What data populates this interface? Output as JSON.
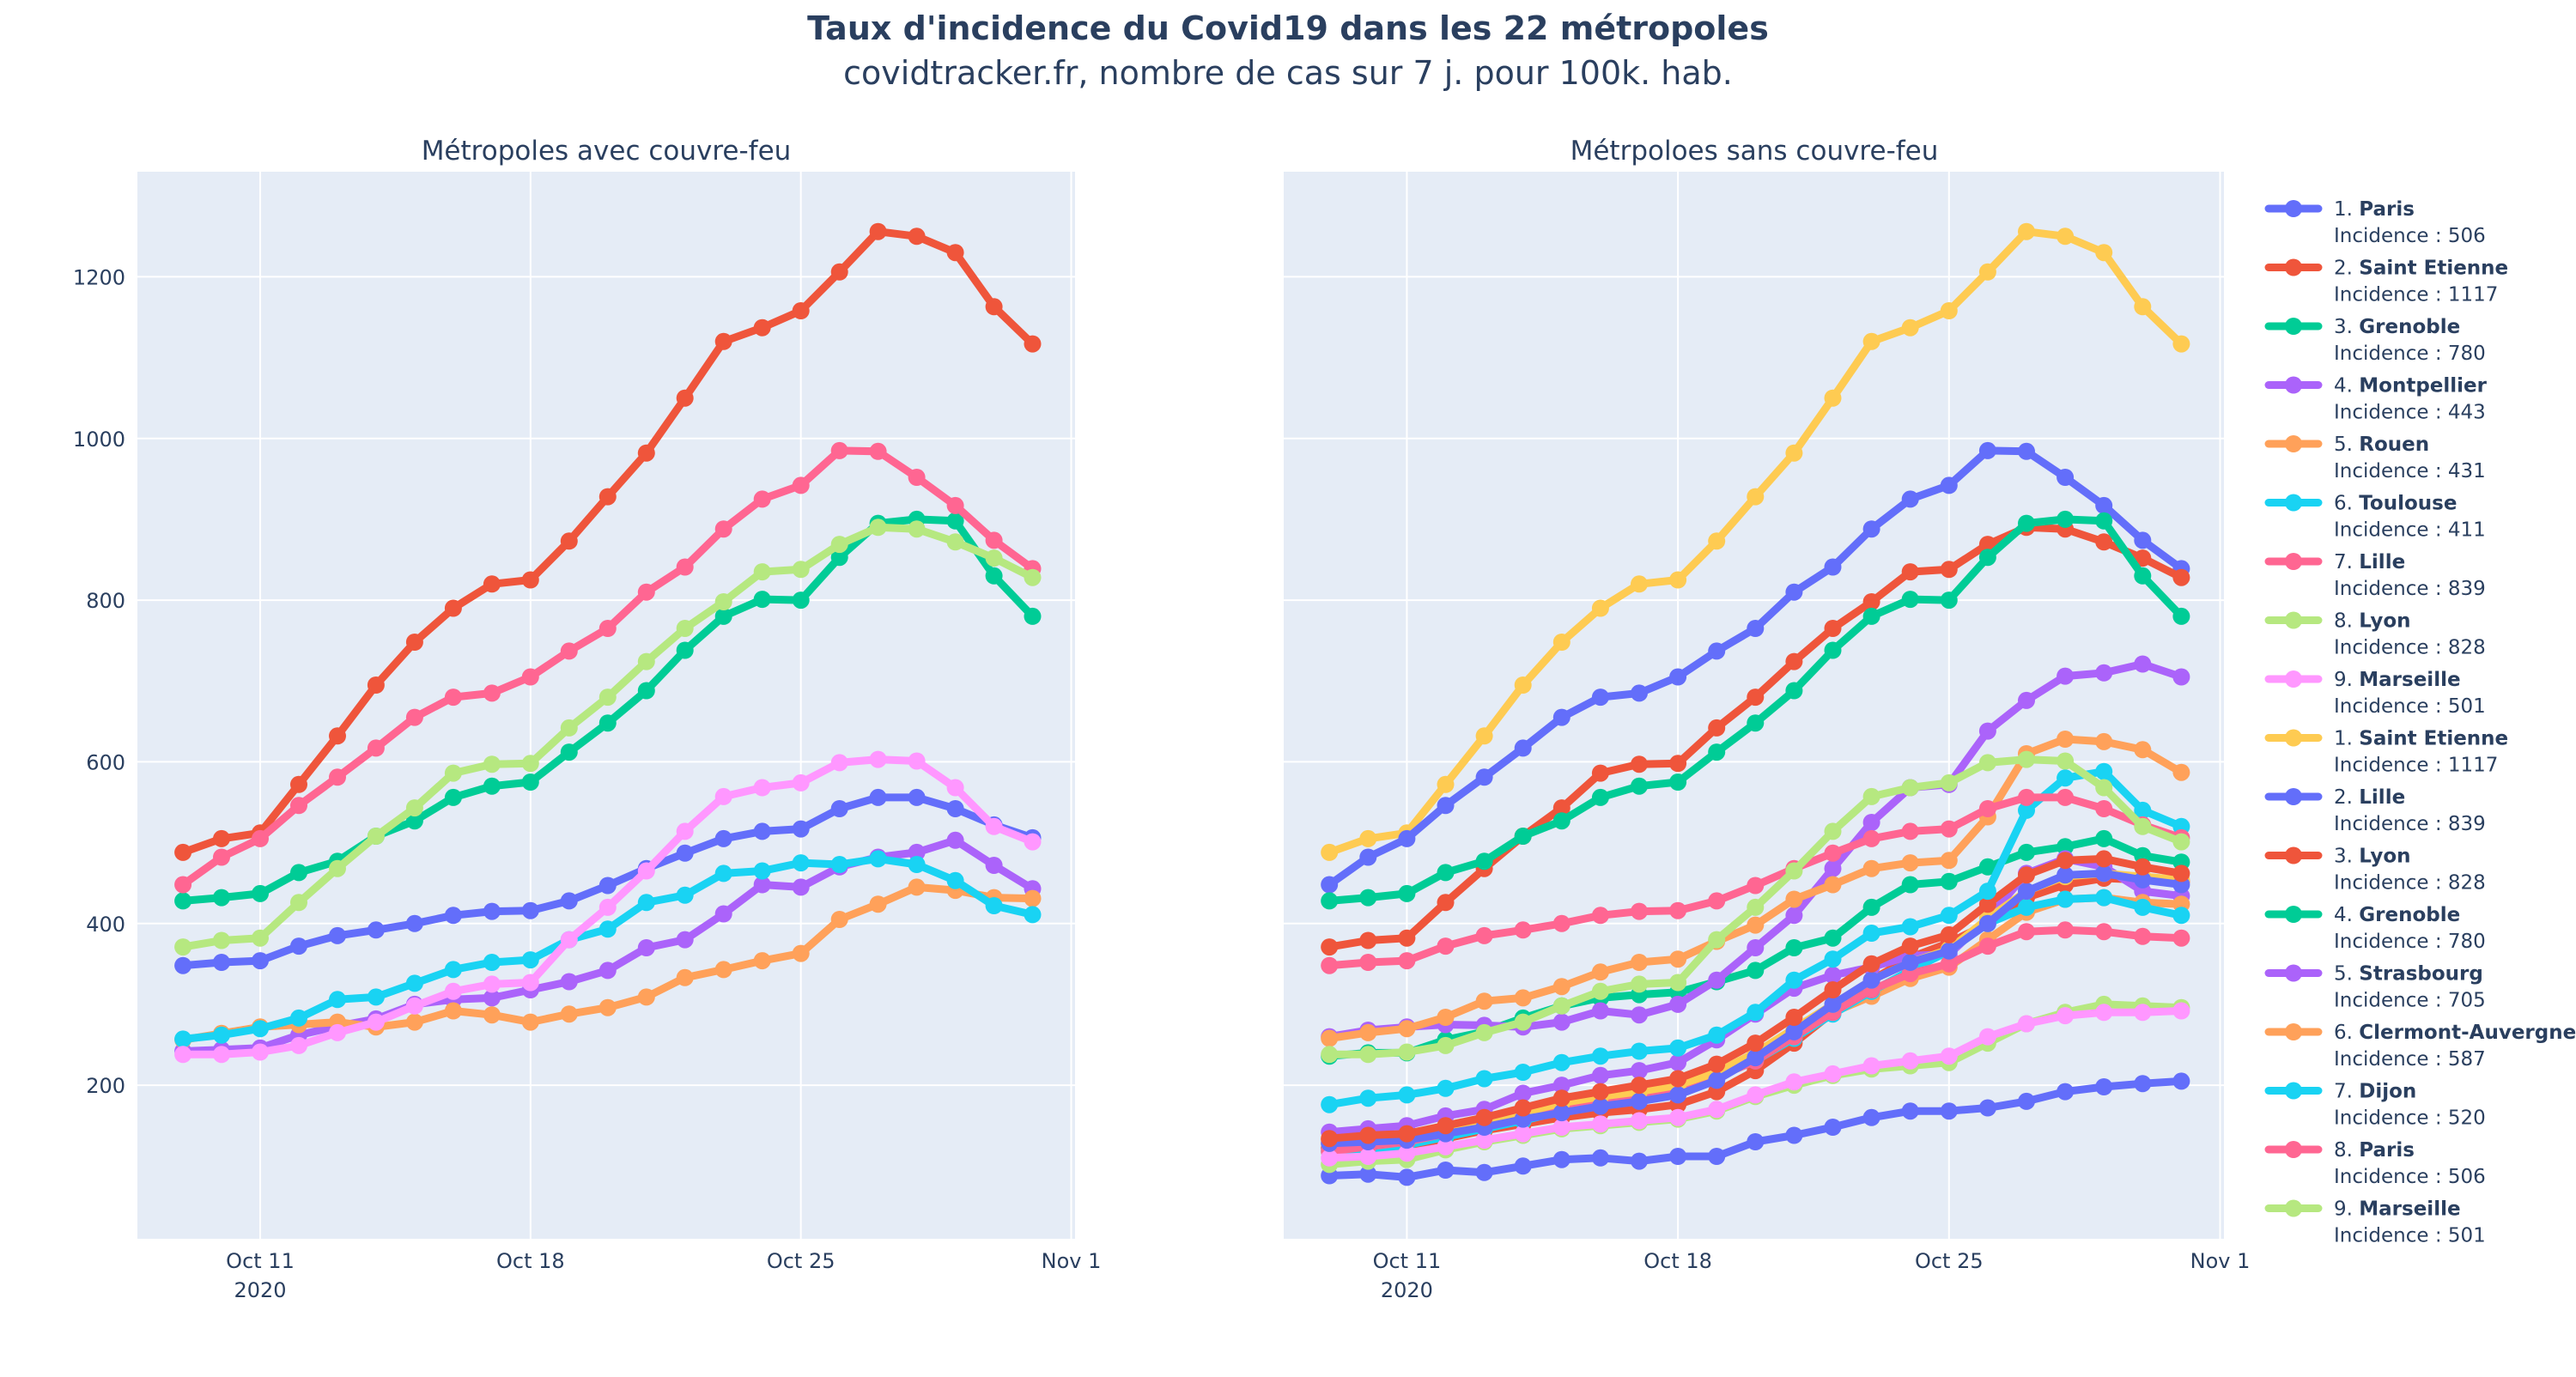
{
  "title": "Taux d'incidence du Covid19 dans les 22 métropoles",
  "subtitle": "covidtracker.fr, nombre de cas sur 7 j. pour 100k. hab.",
  "legend_prefix": "Incidence : ",
  "colors": [
    "#636efa",
    "#ef553b",
    "#00cc96",
    "#ab63fa",
    "#ffa15a",
    "#19d3f3",
    "#ff6692",
    "#b6e880",
    "#ff97ff",
    "#fecb52"
  ],
  "chart_data": [
    {
      "type": "line",
      "title": "Métropoles avec couvre-feu",
      "x": [
        "2020-10-09",
        "2020-10-10",
        "2020-10-11",
        "2020-10-12",
        "2020-10-13",
        "2020-10-14",
        "2020-10-15",
        "2020-10-16",
        "2020-10-17",
        "2020-10-18",
        "2020-10-19",
        "2020-10-20",
        "2020-10-21",
        "2020-10-22",
        "2020-10-23",
        "2020-10-24",
        "2020-10-25",
        "2020-10-26",
        "2020-10-27",
        "2020-10-28",
        "2020-10-29",
        "2020-10-30",
        "2020-10-31"
      ],
      "x_ticks": [
        "Oct 11",
        "Oct 18",
        "Oct 25",
        "Nov 1"
      ],
      "x_tick_year": "2020",
      "y_ticks": [
        200,
        400,
        600,
        800,
        1000,
        1200
      ],
      "ylim": [
        10,
        1330
      ],
      "grid": true,
      "series": [
        {
          "rank": "1.",
          "name": "Paris",
          "incidence": 506,
          "color": "#636efa",
          "values": [
            348,
            352,
            354,
            372,
            385,
            392,
            400,
            410,
            415,
            416,
            428,
            447,
            468,
            487,
            505,
            514,
            517,
            542,
            556,
            556,
            542,
            522,
            506
          ]
        },
        {
          "rank": "2.",
          "name": "Saint Etienne",
          "incidence": 1117,
          "color": "#ef553b",
          "values": [
            488,
            505,
            512,
            572,
            632,
            695,
            748,
            790,
            820,
            825,
            873,
            928,
            982,
            1050,
            1120,
            1137,
            1158,
            1206,
            1256,
            1250,
            1230,
            1163,
            1117
          ]
        },
        {
          "rank": "3.",
          "name": "Grenoble",
          "incidence": 780,
          "color": "#00cc96",
          "values": [
            428,
            432,
            437,
            463,
            477,
            508,
            527,
            556,
            570,
            575,
            612,
            648,
            688,
            738,
            780,
            801,
            800,
            853,
            895,
            900,
            898,
            830,
            780
          ]
        },
        {
          "rank": "4.",
          "name": "Montpellier",
          "incidence": 443,
          "color": "#ab63fa",
          "values": [
            242,
            244,
            246,
            262,
            273,
            282,
            300,
            306,
            308,
            318,
            328,
            342,
            370,
            380,
            412,
            448,
            445,
            470,
            482,
            488,
            503,
            472,
            443
          ]
        },
        {
          "rank": "5.",
          "name": "Rouen",
          "incidence": 431,
          "color": "#ffa15a",
          "values": [
            256,
            264,
            272,
            275,
            278,
            272,
            278,
            292,
            287,
            278,
            288,
            296,
            309,
            333,
            343,
            354,
            363,
            405,
            424,
            445,
            441,
            432,
            431
          ]
        },
        {
          "rank": "6.",
          "name": "Toulouse",
          "incidence": 411,
          "color": "#19d3f3",
          "values": [
            257,
            262,
            270,
            283,
            306,
            309,
            326,
            343,
            352,
            355,
            380,
            393,
            426,
            435,
            462,
            465,
            475,
            473,
            480,
            473,
            453,
            422,
            411
          ]
        },
        {
          "rank": "7.",
          "name": "Lille",
          "incidence": 839,
          "color": "#ff6692",
          "values": [
            448,
            482,
            505,
            546,
            581,
            617,
            655,
            680,
            685,
            705,
            737,
            765,
            810,
            841,
            888,
            925,
            942,
            985,
            984,
            952,
            917,
            874,
            839
          ]
        },
        {
          "rank": "8.",
          "name": "Lyon",
          "incidence": 828,
          "color": "#b6e880",
          "values": [
            371,
            379,
            382,
            426,
            468,
            508,
            543,
            586,
            597,
            598,
            642,
            680,
            724,
            765,
            798,
            835,
            838,
            869,
            890,
            888,
            872,
            852,
            828
          ]
        },
        {
          "rank": "9.",
          "name": "Marseille",
          "incidence": 501,
          "color": "#ff97ff",
          "values": [
            238,
            238,
            241,
            249,
            265,
            278,
            298,
            316,
            325,
            327,
            380,
            420,
            465,
            514,
            557,
            568,
            574,
            599,
            603,
            601,
            568,
            520,
            501
          ]
        }
      ]
    },
    {
      "type": "line",
      "title": "Métrpoloes sans couvre-feu",
      "x": [
        "2020-10-09",
        "2020-10-10",
        "2020-10-11",
        "2020-10-12",
        "2020-10-13",
        "2020-10-14",
        "2020-10-15",
        "2020-10-16",
        "2020-10-17",
        "2020-10-18",
        "2020-10-19",
        "2020-10-20",
        "2020-10-21",
        "2020-10-22",
        "2020-10-23",
        "2020-10-24",
        "2020-10-25",
        "2020-10-26",
        "2020-10-27",
        "2020-10-28",
        "2020-10-29",
        "2020-10-30",
        "2020-10-31"
      ],
      "x_ticks": [
        "Oct 11",
        "Oct 18",
        "Oct 25",
        "Nov 1"
      ],
      "x_tick_year": "2020",
      "ylim": [
        10,
        1330
      ],
      "grid": true,
      "series": [
        {
          "rank": "1.",
          "name": "Saint Etienne",
          "incidence": 1117,
          "color": "#fecb52",
          "values": [
            488,
            505,
            512,
            572,
            632,
            695,
            748,
            790,
            820,
            825,
            873,
            928,
            982,
            1050,
            1120,
            1137,
            1158,
            1206,
            1256,
            1250,
            1230,
            1163,
            1117
          ]
        },
        {
          "rank": "2.",
          "name": "Lille",
          "incidence": 839,
          "color": "#636efa",
          "values": [
            448,
            482,
            505,
            546,
            581,
            617,
            655,
            680,
            685,
            705,
            737,
            765,
            810,
            841,
            888,
            925,
            942,
            985,
            984,
            952,
            917,
            874,
            839
          ]
        },
        {
          "rank": "3.",
          "name": "Lyon",
          "incidence": 828,
          "color": "#ef553b",
          "values": [
            371,
            379,
            382,
            426,
            468,
            508,
            543,
            586,
            597,
            598,
            642,
            680,
            724,
            765,
            798,
            835,
            838,
            869,
            890,
            888,
            872,
            852,
            828
          ]
        },
        {
          "rank": "4.",
          "name": "Grenoble",
          "incidence": 780,
          "color": "#00cc96",
          "values": [
            428,
            432,
            437,
            463,
            477,
            508,
            527,
            556,
            570,
            575,
            612,
            648,
            688,
            738,
            780,
            801,
            800,
            853,
            895,
            900,
            898,
            830,
            780
          ]
        },
        {
          "rank": "5.",
          "name": "Strasbourg",
          "incidence": 705,
          "color": "#ab63fa",
          "values": [
            260,
            268,
            272,
            275,
            274,
            272,
            278,
            292,
            287,
            300,
            330,
            370,
            410,
            468,
            525,
            568,
            572,
            638,
            676,
            706,
            710,
            721,
            705
          ]
        },
        {
          "rank": "6.",
          "name": "Clermont-Auvergne",
          "incidence": 587,
          "color": "#ffa15a",
          "values": [
            258,
            265,
            270,
            284,
            304,
            308,
            322,
            340,
            352,
            356,
            378,
            398,
            430,
            448,
            468,
            475,
            478,
            532,
            610,
            628,
            625,
            615,
            587
          ]
        },
        {
          "rank": "7.",
          "name": "Dijon",
          "incidence": 520,
          "color": "#19d3f3",
          "values": [
            176,
            184,
            188,
            196,
            208,
            216,
            228,
            236,
            242,
            246,
            262,
            290,
            330,
            356,
            388,
            396,
            410,
            440,
            540,
            580,
            588,
            540,
            520
          ]
        },
        {
          "rank": "8.",
          "name": "Paris",
          "incidence": 506,
          "color": "#ff6692",
          "values": [
            348,
            352,
            354,
            372,
            385,
            392,
            400,
            410,
            415,
            416,
            428,
            447,
            468,
            487,
            505,
            514,
            517,
            542,
            556,
            556,
            542,
            522,
            506
          ]
        },
        {
          "rank": "9.",
          "name": "Marseille",
          "incidence": 501,
          "color": "#b6e880",
          "values": [
            238,
            238,
            241,
            249,
            265,
            278,
            298,
            316,
            325,
            327,
            380,
            420,
            465,
            514,
            557,
            568,
            574,
            599,
            603,
            601,
            568,
            520,
            501
          ]
        }
      ],
      "extra_series": [
        {
          "color": "#636efa",
          "values": [
            88,
            90,
            86,
            95,
            92,
            100,
            108,
            110,
            106,
            112,
            112,
            130,
            138,
            148,
            160,
            168,
            168,
            172,
            180,
            192,
            198,
            202,
            205
          ]
        },
        {
          "color": "#ef553b",
          "values": [
            122,
            124,
            124,
            134,
            144,
            152,
            160,
            166,
            170,
            176,
            192,
            218,
            252,
            290,
            330,
            358,
            376,
            400,
            432,
            448,
            456,
            454,
            452
          ]
        },
        {
          "color": "#00cc96",
          "values": [
            236,
            240,
            240,
            256,
            266,
            283,
            298,
            308,
            312,
            315,
            328,
            342,
            370,
            382,
            420,
            448,
            452,
            470,
            488,
            495,
            505,
            484,
            476
          ]
        },
        {
          "color": "#ab63fa",
          "values": [
            142,
            146,
            150,
            162,
            170,
            190,
            200,
            212,
            218,
            228,
            256,
            288,
            320,
            336,
            346,
            360,
            362,
            406,
            462,
            480,
            470,
            440,
            434
          ]
        },
        {
          "color": "#ffa15a",
          "values": [
            132,
            134,
            134,
            140,
            150,
            162,
            172,
            182,
            186,
            192,
            210,
            232,
            262,
            290,
            310,
            332,
            346,
            380,
            414,
            430,
            432,
            426,
            424
          ]
        },
        {
          "color": "#19d3f3",
          "values": [
            118,
            120,
            126,
            136,
            146,
            156,
            168,
            178,
            186,
            194,
            210,
            230,
            258,
            288,
            316,
            342,
            366,
            400,
            420,
            430,
            432,
            420,
            410
          ]
        },
        {
          "color": "#ff6692",
          "values": [
            118,
            124,
            130,
            140,
            150,
            162,
            172,
            180,
            188,
            196,
            210,
            230,
            260,
            290,
            318,
            338,
            350,
            372,
            390,
            392,
            390,
            384,
            382
          ]
        },
        {
          "color": "#b6e880",
          "values": [
            102,
            106,
            108,
            120,
            130,
            138,
            146,
            150,
            154,
            158,
            168,
            186,
            200,
            212,
            220,
            224,
            228,
            252,
            276,
            290,
            300,
            298,
            296
          ]
        },
        {
          "color": "#ff97ff",
          "values": [
            110,
            112,
            116,
            124,
            132,
            140,
            148,
            152,
            156,
            160,
            170,
            188,
            204,
            214,
            224,
            230,
            236,
            260,
            276,
            286,
            290,
            290,
            292
          ]
        },
        {
          "color": "#fecb52",
          "values": [
            128,
            132,
            136,
            146,
            156,
            166,
            178,
            186,
            192,
            200,
            216,
            240,
            270,
            300,
            330,
            352,
            368,
            406,
            440,
            458,
            462,
            458,
            454
          ]
        },
        {
          "color": "#636efa",
          "values": [
            128,
            130,
            132,
            140,
            148,
            158,
            166,
            174,
            180,
            188,
            206,
            234,
            266,
            300,
            330,
            352,
            366,
            400,
            440,
            460,
            462,
            454,
            448
          ]
        },
        {
          "color": "#ef553b",
          "values": [
            134,
            138,
            140,
            150,
            160,
            172,
            184,
            192,
            200,
            208,
            226,
            252,
            284,
            318,
            350,
            372,
            386,
            424,
            460,
            478,
            480,
            470,
            462
          ]
        }
      ]
    }
  ]
}
